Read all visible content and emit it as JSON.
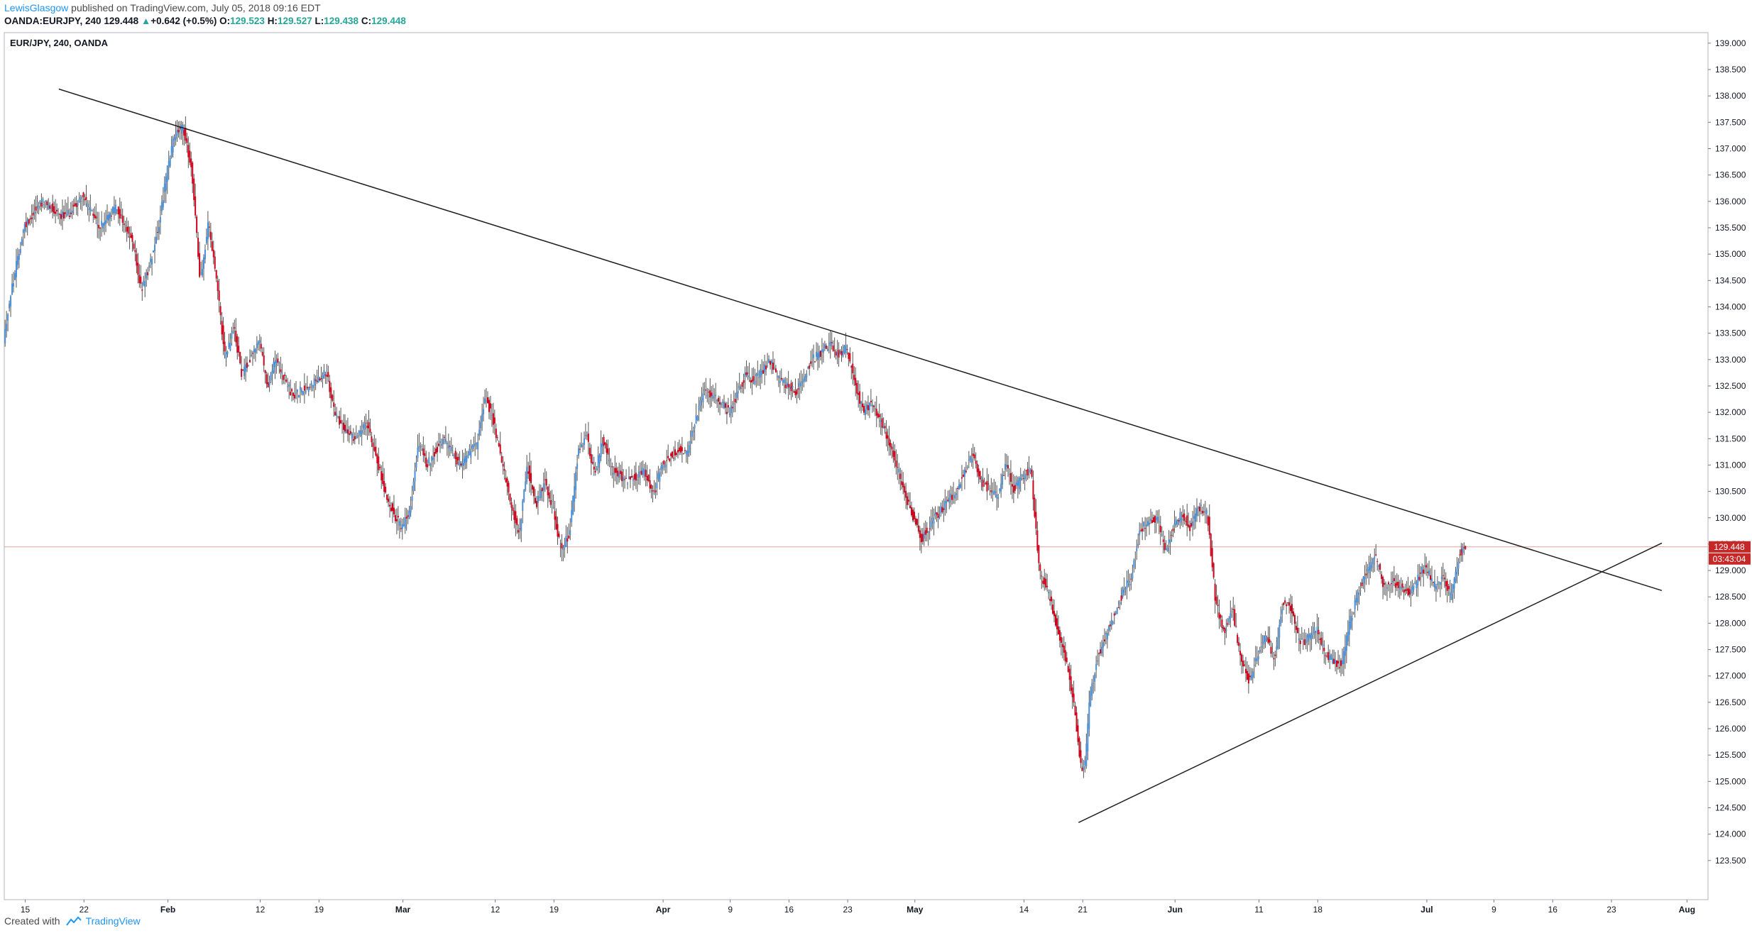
{
  "header": {
    "author": "LewisGlasgow",
    "published": "published on TradingView.com, July 05, 2018 09:16 EDT"
  },
  "quote": {
    "symbol": "OANDA:EURJPY, 240",
    "last": "129.448",
    "change": "+0.642 (+0.5%)",
    "open_label": "O:",
    "open": "129.523",
    "high_label": "H:",
    "high": "129.527",
    "low_label": "L:",
    "low": "129.438",
    "close_label": "C:",
    "close": "129.448"
  },
  "footer": {
    "created_with": "Created with",
    "brand": "TradingView"
  },
  "colors": {
    "up": "#4a90d9",
    "down": "#d0021b",
    "trendline": "#1f1f1f",
    "price_line": "#e0a0a0",
    "price_tag": "#c62828"
  },
  "chart_data": {
    "type": "candlestick",
    "title": "EUR/JPY, 240, OANDA",
    "current_price_label": "129.448",
    "countdown_label": "03:43:04",
    "ylim": [
      123.0,
      139.2
    ],
    "y_ticks": [
      "123.500",
      "124.000",
      "124.500",
      "125.000",
      "125.500",
      "126.000",
      "126.500",
      "127.000",
      "127.500",
      "128.000",
      "128.500",
      "129.000",
      "129.500",
      "130.000",
      "130.500",
      "131.000",
      "131.500",
      "132.000",
      "132.500",
      "133.000",
      "133.500",
      "134.000",
      "134.500",
      "135.000",
      "135.500",
      "136.000",
      "136.500",
      "137.000",
      "137.500",
      "138.000",
      "138.500",
      "139.000"
    ],
    "x_ticks": [
      {
        "label": "15",
        "day": 14
      },
      {
        "label": "22",
        "day": 21
      },
      {
        "label": "Feb",
        "day": 31
      },
      {
        "label": "12",
        "day": 42
      },
      {
        "label": "19",
        "day": 49
      },
      {
        "label": "Mar",
        "day": 59
      },
      {
        "label": "12",
        "day": 70
      },
      {
        "label": "19",
        "day": 77
      },
      {
        "label": "Apr",
        "day": 90
      },
      {
        "label": "9",
        "day": 98
      },
      {
        "label": "16",
        "day": 105
      },
      {
        "label": "23",
        "day": 112
      },
      {
        "label": "May",
        "day": 120
      },
      {
        "label": "14",
        "day": 133
      },
      {
        "label": "21",
        "day": 140
      },
      {
        "label": "Jun",
        "day": 151
      },
      {
        "label": "11",
        "day": 161
      },
      {
        "label": "18",
        "day": 168
      },
      {
        "label": "Jul",
        "day": 181
      },
      {
        "label": "9",
        "day": 189
      },
      {
        "label": "16",
        "day": 196
      },
      {
        "label": "23",
        "day": 203
      },
      {
        "label": "Aug",
        "day": 212
      }
    ],
    "xlim_days": [
      11.5,
      214.5
    ],
    "last_day": 185.6,
    "price_path": [
      [
        11.6,
        133.4
      ],
      [
        12.5,
        134.3
      ],
      [
        14,
        135.5
      ],
      [
        16,
        136.0
      ],
      [
        19,
        135.7
      ],
      [
        21,
        136.1
      ],
      [
        23,
        135.5
      ],
      [
        25,
        135.9
      ],
      [
        27,
        135.2
      ],
      [
        28,
        134.3
      ],
      [
        29,
        134.8
      ],
      [
        30,
        135.5
      ],
      [
        31,
        136.5
      ],
      [
        32,
        137.3
      ],
      [
        33,
        137.4
      ],
      [
        34,
        136.6
      ],
      [
        35,
        134.5
      ],
      [
        36,
        135.6
      ],
      [
        37,
        134.4
      ],
      [
        38,
        133.0
      ],
      [
        39,
        133.6
      ],
      [
        40,
        132.7
      ],
      [
        42,
        133.4
      ],
      [
        43,
        132.5
      ],
      [
        44,
        133.0
      ],
      [
        46,
        132.3
      ],
      [
        48,
        132.5
      ],
      [
        50,
        132.8
      ],
      [
        51,
        132.0
      ],
      [
        53,
        131.5
      ],
      [
        55,
        131.8
      ],
      [
        57,
        130.5
      ],
      [
        58,
        130.1
      ],
      [
        59,
        129.8
      ],
      [
        60,
        130.1
      ],
      [
        61,
        131.4
      ],
      [
        62,
        131.0
      ],
      [
        64,
        131.5
      ],
      [
        66,
        131.0
      ],
      [
        68,
        131.4
      ],
      [
        69,
        132.3
      ],
      [
        70,
        131.8
      ],
      [
        71,
        131.0
      ],
      [
        72,
        130.3
      ],
      [
        73,
        129.7
      ],
      [
        74,
        131.0
      ],
      [
        75,
        130.2
      ],
      [
        76,
        130.7
      ],
      [
        77,
        130.2
      ],
      [
        78,
        129.4
      ],
      [
        79,
        129.7
      ],
      [
        80,
        131.2
      ],
      [
        81,
        131.6
      ],
      [
        82,
        130.8
      ],
      [
        83,
        131.5
      ],
      [
        84,
        130.9
      ],
      [
        86,
        130.7
      ],
      [
        88,
        130.9
      ],
      [
        89,
        130.4
      ],
      [
        90,
        131.0
      ],
      [
        92,
        131.3
      ],
      [
        93,
        131.2
      ],
      [
        95,
        132.4
      ],
      [
        97,
        132.2
      ],
      [
        98,
        132.0
      ],
      [
        100,
        132.7
      ],
      [
        101,
        132.6
      ],
      [
        103,
        133.0
      ],
      [
        104,
        132.6
      ],
      [
        106,
        132.4
      ],
      [
        108,
        133.0
      ],
      [
        110,
        133.3
      ],
      [
        111,
        133.1
      ],
      [
        112,
        133.2
      ],
      [
        113,
        132.6
      ],
      [
        114,
        132.0
      ],
      [
        115,
        132.2
      ],
      [
        117,
        131.5
      ],
      [
        118,
        131.0
      ],
      [
        119,
        130.4
      ],
      [
        120,
        130.0
      ],
      [
        121,
        129.6
      ],
      [
        122,
        129.9
      ],
      [
        124,
        130.3
      ],
      [
        125,
        130.5
      ],
      [
        127,
        131.2
      ],
      [
        128,
        130.7
      ],
      [
        130,
        130.4
      ],
      [
        131,
        131.0
      ],
      [
        132,
        130.5
      ],
      [
        133,
        130.8
      ],
      [
        134,
        130.9
      ],
      [
        135,
        129.0
      ],
      [
        136,
        128.6
      ],
      [
        137,
        128.0
      ],
      [
        138,
        127.4
      ],
      [
        139,
        126.6
      ],
      [
        140,
        125.2
      ],
      [
        140.5,
        125.4
      ],
      [
        141,
        126.6
      ],
      [
        142,
        127.4
      ],
      [
        143,
        127.8
      ],
      [
        144,
        128.2
      ],
      [
        145,
        128.6
      ],
      [
        146,
        128.9
      ],
      [
        147,
        129.8
      ],
      [
        148,
        129.9
      ],
      [
        149,
        130.0
      ],
      [
        150,
        129.4
      ],
      [
        151,
        129.8
      ],
      [
        152,
        130.1
      ],
      [
        153,
        129.8
      ],
      [
        154,
        130.2
      ],
      [
        155,
        130.1
      ],
      [
        156,
        128.4
      ],
      [
        157,
        127.8
      ],
      [
        158,
        128.3
      ],
      [
        159,
        127.3
      ],
      [
        160,
        126.9
      ],
      [
        161,
        127.4
      ],
      [
        162,
        127.8
      ],
      [
        163,
        127.3
      ],
      [
        164,
        128.4
      ],
      [
        165,
        128.3
      ],
      [
        166,
        127.6
      ],
      [
        167,
        127.7
      ],
      [
        168,
        127.9
      ],
      [
        169,
        127.4
      ],
      [
        170,
        127.3
      ],
      [
        171,
        127.2
      ],
      [
        172,
        128.0
      ],
      [
        173,
        128.6
      ],
      [
        174,
        129.0
      ],
      [
        175,
        129.3
      ],
      [
        176,
        128.7
      ],
      [
        177,
        128.8
      ],
      [
        178,
        128.7
      ],
      [
        179,
        128.6
      ],
      [
        180,
        128.8
      ],
      [
        181,
        129.1
      ],
      [
        182,
        128.7
      ],
      [
        183,
        128.9
      ],
      [
        184,
        128.5
      ],
      [
        185,
        129.3
      ],
      [
        185.6,
        129.45
      ]
    ],
    "trendlines": [
      {
        "name": "descending-resistance",
        "from": {
          "day": 18,
          "price": 138.13
        },
        "to": {
          "day": 209,
          "price": 128.62
        }
      },
      {
        "name": "ascending-support",
        "from": {
          "day": 139.5,
          "price": 124.22
        },
        "to": {
          "day": 209,
          "price": 129.52
        }
      }
    ]
  }
}
